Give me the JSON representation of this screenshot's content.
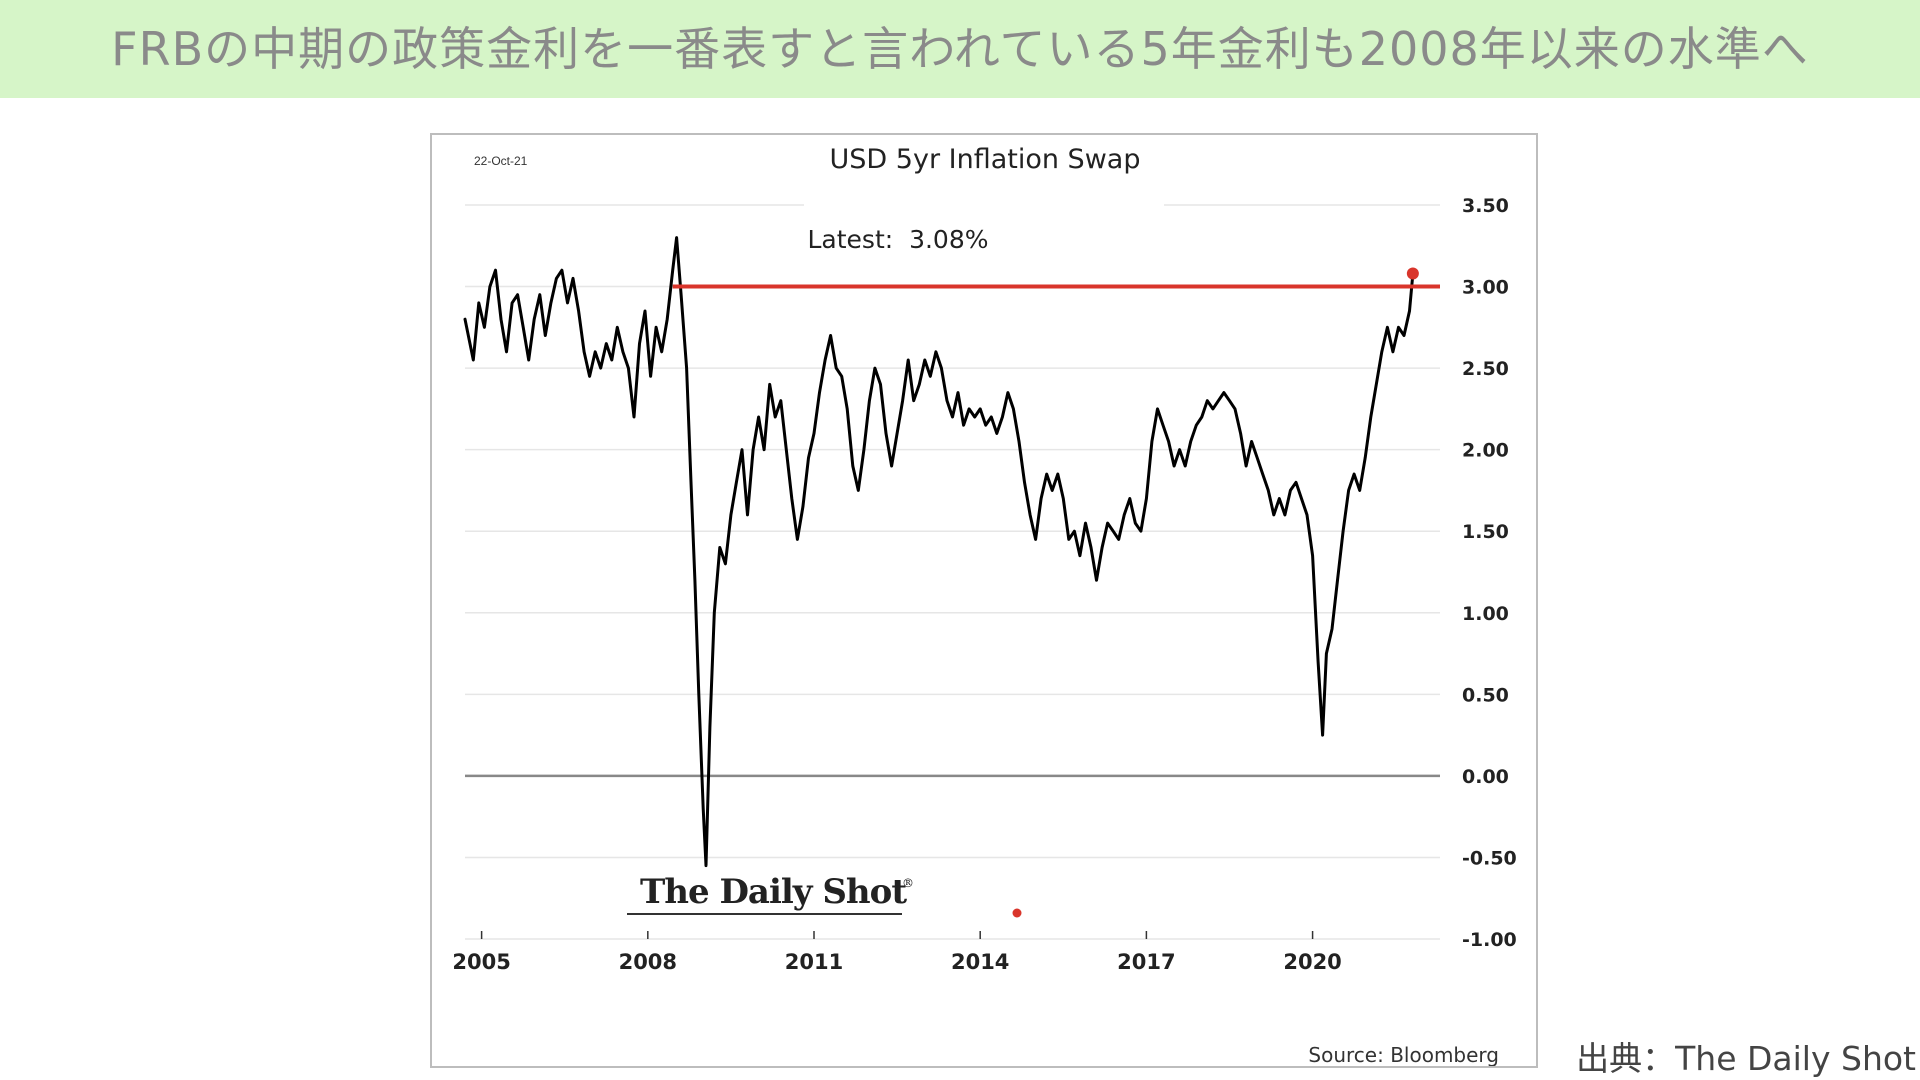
{
  "banner": {
    "title": "FRBの中期の政策金利を一番表すと言われている5年金利も2008年以来の水準へ",
    "background": "#d6f5c8"
  },
  "chart_data": {
    "type": "line",
    "title": "USD 5yr Inflation Swap",
    "date_label": "22-Oct-21",
    "annotation": "Latest:  3.08%",
    "source": "Source: Bloomberg",
    "watermark": "The Daily Shot",
    "watermark_mark": "®",
    "xlabel": "",
    "ylabel": "",
    "x_tick_labels": [
      "2005",
      "2008",
      "2011",
      "2014",
      "2017",
      "2020"
    ],
    "x_ticks": [
      2005,
      2008,
      2011,
      2014,
      2017,
      2020
    ],
    "xlim": [
      2004.7,
      2022.3
    ],
    "y_tick_labels": [
      "3.50",
      "3.00",
      "2.50",
      "2.00",
      "1.50",
      "1.00",
      "0.50",
      "0.00",
      "-0.50",
      "-1.00"
    ],
    "y_ticks": [
      3.5,
      3.0,
      2.5,
      2.0,
      1.5,
      1.0,
      0.5,
      0.0,
      -0.5,
      -1.0
    ],
    "ylim": [
      -1.0,
      3.5
    ],
    "grid": true,
    "reference_line": {
      "value": 3.0,
      "from_x": 2008.45,
      "to_x": 2022.3,
      "color": "#d9352b"
    },
    "latest_point": {
      "x": 2021.81,
      "y": 3.08,
      "color": "#d9352b"
    },
    "line_color": "#000000",
    "series": [
      {
        "values": [
          [
            2004.7,
            2.8
          ],
          [
            2004.85,
            2.55
          ],
          [
            2004.95,
            2.9
          ],
          [
            2005.05,
            2.75
          ],
          [
            2005.15,
            3.0
          ],
          [
            2005.25,
            3.1
          ],
          [
            2005.35,
            2.8
          ],
          [
            2005.45,
            2.6
          ],
          [
            2005.55,
            2.9
          ],
          [
            2005.65,
            2.95
          ],
          [
            2005.75,
            2.75
          ],
          [
            2005.85,
            2.55
          ],
          [
            2005.95,
            2.8
          ],
          [
            2006.05,
            2.95
          ],
          [
            2006.15,
            2.7
          ],
          [
            2006.25,
            2.9
          ],
          [
            2006.35,
            3.05
          ],
          [
            2006.45,
            3.1
          ],
          [
            2006.55,
            2.9
          ],
          [
            2006.65,
            3.05
          ],
          [
            2006.75,
            2.85
          ],
          [
            2006.85,
            2.6
          ],
          [
            2006.95,
            2.45
          ],
          [
            2007.05,
            2.6
          ],
          [
            2007.15,
            2.5
          ],
          [
            2007.25,
            2.65
          ],
          [
            2007.35,
            2.55
          ],
          [
            2007.45,
            2.75
          ],
          [
            2007.55,
            2.6
          ],
          [
            2007.65,
            2.5
          ],
          [
            2007.75,
            2.2
          ],
          [
            2007.85,
            2.65
          ],
          [
            2007.95,
            2.85
          ],
          [
            2008.05,
            2.45
          ],
          [
            2008.15,
            2.75
          ],
          [
            2008.25,
            2.6
          ],
          [
            2008.35,
            2.8
          ],
          [
            2008.45,
            3.1
          ],
          [
            2008.52,
            3.3
          ],
          [
            2008.6,
            2.95
          ],
          [
            2008.7,
            2.5
          ],
          [
            2008.78,
            1.8
          ],
          [
            2008.85,
            1.2
          ],
          [
            2008.92,
            0.5
          ],
          [
            2009.0,
            -0.2
          ],
          [
            2009.05,
            -0.55
          ],
          [
            2009.12,
            0.3
          ],
          [
            2009.2,
            1.0
          ],
          [
            2009.3,
            1.4
          ],
          [
            2009.4,
            1.3
          ],
          [
            2009.5,
            1.6
          ],
          [
            2009.6,
            1.8
          ],
          [
            2009.7,
            2.0
          ],
          [
            2009.8,
            1.6
          ],
          [
            2009.9,
            2.0
          ],
          [
            2010.0,
            2.2
          ],
          [
            2010.1,
            2.0
          ],
          [
            2010.2,
            2.4
          ],
          [
            2010.3,
            2.2
          ],
          [
            2010.4,
            2.3
          ],
          [
            2010.5,
            2.0
          ],
          [
            2010.6,
            1.7
          ],
          [
            2010.7,
            1.45
          ],
          [
            2010.8,
            1.65
          ],
          [
            2010.9,
            1.95
          ],
          [
            2011.0,
            2.1
          ],
          [
            2011.1,
            2.35
          ],
          [
            2011.2,
            2.55
          ],
          [
            2011.3,
            2.7
          ],
          [
            2011.4,
            2.5
          ],
          [
            2011.5,
            2.45
          ],
          [
            2011.6,
            2.25
          ],
          [
            2011.7,
            1.9
          ],
          [
            2011.8,
            1.75
          ],
          [
            2011.9,
            2.0
          ],
          [
            2012.0,
            2.3
          ],
          [
            2012.1,
            2.5
          ],
          [
            2012.2,
            2.4
          ],
          [
            2012.3,
            2.1
          ],
          [
            2012.4,
            1.9
          ],
          [
            2012.5,
            2.1
          ],
          [
            2012.6,
            2.3
          ],
          [
            2012.7,
            2.55
          ],
          [
            2012.8,
            2.3
          ],
          [
            2012.9,
            2.4
          ],
          [
            2013.0,
            2.55
          ],
          [
            2013.1,
            2.45
          ],
          [
            2013.2,
            2.6
          ],
          [
            2013.3,
            2.5
          ],
          [
            2013.4,
            2.3
          ],
          [
            2013.5,
            2.2
          ],
          [
            2013.6,
            2.35
          ],
          [
            2013.7,
            2.15
          ],
          [
            2013.8,
            2.25
          ],
          [
            2013.9,
            2.2
          ],
          [
            2014.0,
            2.25
          ],
          [
            2014.1,
            2.15
          ],
          [
            2014.2,
            2.2
          ],
          [
            2014.3,
            2.1
          ],
          [
            2014.4,
            2.2
          ],
          [
            2014.5,
            2.35
          ],
          [
            2014.6,
            2.25
          ],
          [
            2014.7,
            2.05
          ],
          [
            2014.8,
            1.8
          ],
          [
            2014.9,
            1.6
          ],
          [
            2015.0,
            1.45
          ],
          [
            2015.1,
            1.7
          ],
          [
            2015.2,
            1.85
          ],
          [
            2015.3,
            1.75
          ],
          [
            2015.4,
            1.85
          ],
          [
            2015.5,
            1.7
          ],
          [
            2015.6,
            1.45
          ],
          [
            2015.7,
            1.5
          ],
          [
            2015.8,
            1.35
          ],
          [
            2015.9,
            1.55
          ],
          [
            2016.0,
            1.4
          ],
          [
            2016.1,
            1.2
          ],
          [
            2016.2,
            1.4
          ],
          [
            2016.3,
            1.55
          ],
          [
            2016.4,
            1.5
          ],
          [
            2016.5,
            1.45
          ],
          [
            2016.6,
            1.6
          ],
          [
            2016.7,
            1.7
          ],
          [
            2016.8,
            1.55
          ],
          [
            2016.9,
            1.5
          ],
          [
            2017.0,
            1.7
          ],
          [
            2017.1,
            2.05
          ],
          [
            2017.2,
            2.25
          ],
          [
            2017.3,
            2.15
          ],
          [
            2017.4,
            2.05
          ],
          [
            2017.5,
            1.9
          ],
          [
            2017.6,
            2.0
          ],
          [
            2017.7,
            1.9
          ],
          [
            2017.8,
            2.05
          ],
          [
            2017.9,
            2.15
          ],
          [
            2018.0,
            2.2
          ],
          [
            2018.1,
            2.3
          ],
          [
            2018.2,
            2.25
          ],
          [
            2018.3,
            2.3
          ],
          [
            2018.4,
            2.35
          ],
          [
            2018.5,
            2.3
          ],
          [
            2018.6,
            2.25
          ],
          [
            2018.7,
            2.1
          ],
          [
            2018.8,
            1.9
          ],
          [
            2018.9,
            2.05
          ],
          [
            2019.0,
            1.95
          ],
          [
            2019.1,
            1.85
          ],
          [
            2019.2,
            1.75
          ],
          [
            2019.3,
            1.6
          ],
          [
            2019.4,
            1.7
          ],
          [
            2019.5,
            1.6
          ],
          [
            2019.6,
            1.75
          ],
          [
            2019.7,
            1.8
          ],
          [
            2019.8,
            1.7
          ],
          [
            2019.9,
            1.6
          ],
          [
            2020.0,
            1.35
          ],
          [
            2020.1,
            0.7
          ],
          [
            2020.18,
            0.25
          ],
          [
            2020.25,
            0.75
          ],
          [
            2020.35,
            0.9
          ],
          [
            2020.45,
            1.2
          ],
          [
            2020.55,
            1.5
          ],
          [
            2020.65,
            1.75
          ],
          [
            2020.75,
            1.85
          ],
          [
            2020.85,
            1.75
          ],
          [
            2020.95,
            1.95
          ],
          [
            2021.05,
            2.2
          ],
          [
            2021.15,
            2.4
          ],
          [
            2021.25,
            2.6
          ],
          [
            2021.35,
            2.75
          ],
          [
            2021.45,
            2.6
          ],
          [
            2021.55,
            2.75
          ],
          [
            2021.65,
            2.7
          ],
          [
            2021.75,
            2.85
          ],
          [
            2021.81,
            3.08
          ]
        ]
      }
    ]
  },
  "credit": {
    "text": "出典：The Daily Shot"
  }
}
